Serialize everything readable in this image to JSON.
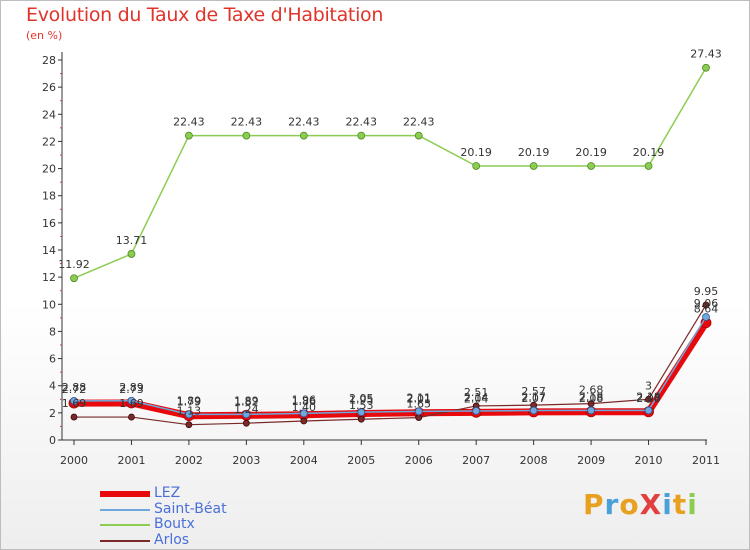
{
  "chart_data": {
    "type": "line",
    "title": "Evolution du Taux de Taxe d'Habitation",
    "subtitle": "(en %)",
    "xlabel": "",
    "ylabel": "(en %)",
    "x": [
      "2000",
      "2001",
      "2002",
      "2003",
      "2004",
      "2005",
      "2006",
      "2007",
      "2008",
      "2009",
      "2010",
      "2011"
    ],
    "ylim": [
      0,
      28
    ],
    "yticks": [
      0,
      2,
      4,
      6,
      8,
      10,
      12,
      14,
      16,
      18,
      20,
      22,
      24,
      26,
      28
    ],
    "grid": false,
    "legend_position": "bottom-left",
    "series": [
      {
        "name": "LEZ",
        "color": "#e8090d",
        "values": [
          2.72,
          2.73,
          1.79,
          1.82,
          1.86,
          1.95,
          2.01,
          2.04,
          2.07,
          2.08,
          2.08,
          8.64
        ],
        "labels": [
          "2.72",
          "2.73",
          "1.79",
          "1.82",
          "1.86",
          "1.95",
          "2.01",
          "2.04",
          "2.07",
          "2.08",
          "2.08",
          "8.64"
        ]
      },
      {
        "name": "Saint-Béat",
        "color": "#6fa8dc",
        "values": [
          2.88,
          2.89,
          1.89,
          1.89,
          1.96,
          2.05,
          2.11,
          2.14,
          2.17,
          2.18,
          2.18,
          9.06
        ],
        "labels": [
          "2.88",
          "2.89",
          "1.89",
          "1.89",
          "1.96",
          "2.05",
          "2.11",
          "2.14",
          "2.17",
          "2.18",
          "2.18",
          "9.06"
        ]
      },
      {
        "name": "Boutx",
        "color": "#8ccc52",
        "values": [
          11.92,
          13.71,
          22.43,
          22.43,
          22.43,
          22.43,
          22.43,
          20.19,
          20.19,
          20.19,
          20.19,
          27.43
        ],
        "labels": [
          "11.92",
          "13.71",
          "22.43",
          "22.43",
          "22.43",
          "22.43",
          "22.43",
          "20.19",
          "20.19",
          "20.19",
          "20.19",
          "27.43"
        ]
      },
      {
        "name": "Arlos",
        "color": "#7a2a2a",
        "values": [
          1.69,
          1.69,
          1.13,
          1.24,
          1.4,
          1.53,
          1.65,
          2.51,
          2.57,
          2.68,
          3.0,
          9.95
        ],
        "labels": [
          "1.69",
          "1.69",
          "1.13",
          "1.24",
          "1.40",
          "1.53",
          "1.65",
          "2.51",
          "2.57",
          "2.68",
          "3",
          "9.95"
        ]
      }
    ]
  },
  "logo": {
    "text": "ProXiti",
    "colors": [
      "#e8a020",
      "#4aa0d8",
      "#e8a020",
      "#e04040",
      "#4aa0d8",
      "#e8a020",
      "#8ccc52"
    ]
  }
}
